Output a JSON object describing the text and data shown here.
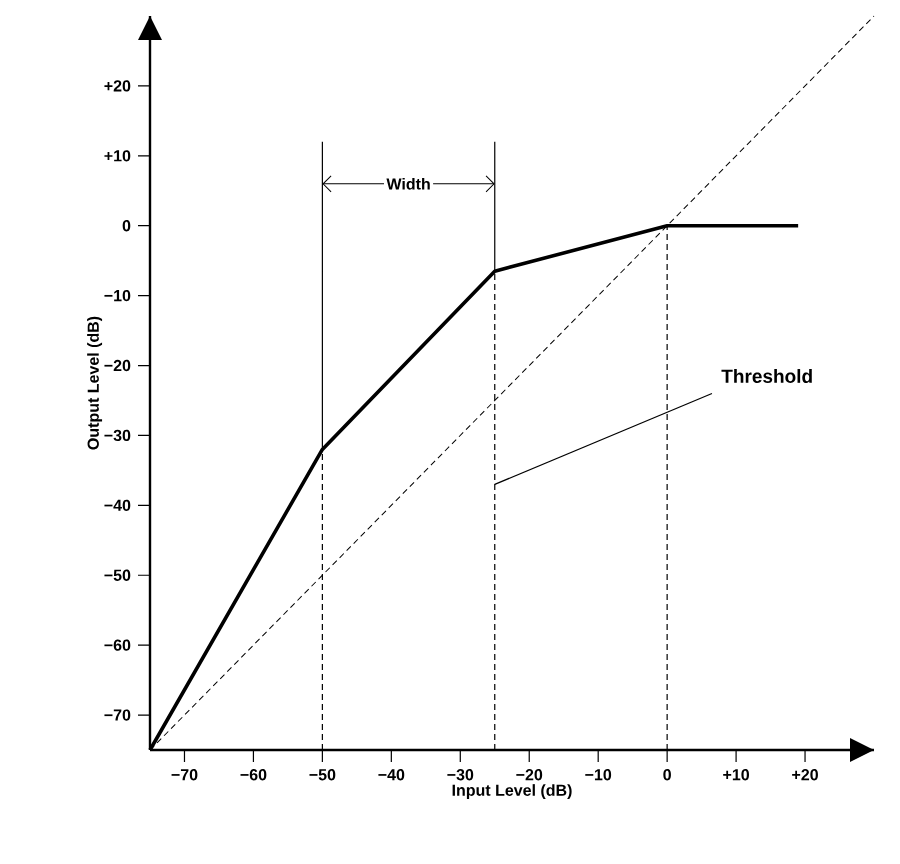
{
  "chart_data": {
    "type": "line",
    "xlabel": "Input Level (dB)",
    "ylabel": "Output Level (dB)",
    "xlim": [
      -75,
      30
    ],
    "ylim": [
      -75,
      30
    ],
    "xticks": [
      {
        "value": -70,
        "label": "−70"
      },
      {
        "value": -60,
        "label": "−60"
      },
      {
        "value": -50,
        "label": "−50"
      },
      {
        "value": -40,
        "label": "−40"
      },
      {
        "value": -30,
        "label": "−30"
      },
      {
        "value": -20,
        "label": "−20"
      },
      {
        "value": -10,
        "label": "−10"
      },
      {
        "value": 0,
        "label": "0"
      },
      {
        "value": 10,
        "label": "+10"
      },
      {
        "value": 20,
        "label": "+20"
      }
    ],
    "yticks": [
      {
        "value": -70,
        "label": "−70"
      },
      {
        "value": -60,
        "label": "−60"
      },
      {
        "value": -50,
        "label": "−50"
      },
      {
        "value": -40,
        "label": "−40"
      },
      {
        "value": -30,
        "label": "−30"
      },
      {
        "value": -20,
        "label": "−20"
      },
      {
        "value": -10,
        "label": "−10"
      },
      {
        "value": 0,
        "label": "0"
      },
      {
        "value": 10,
        "label": "+10"
      },
      {
        "value": 20,
        "label": "+20"
      }
    ],
    "series": [
      {
        "color": "#000000",
        "line_style": "solid",
        "x": [
          -75,
          -50,
          -25,
          0,
          19
        ],
        "values": [
          -75,
          -32,
          -6.5,
          0,
          0
        ]
      },
      {
        "color": "#000000",
        "line_style": "dashed",
        "x": [
          -75,
          30
        ],
        "values": [
          -75,
          30
        ]
      }
    ],
    "ref_lines": [
      {
        "axis": "x",
        "value": -50,
        "line_style": "dashed"
      },
      {
        "axis": "x",
        "value": -25,
        "line_style": "dashed"
      },
      {
        "axis": "x",
        "value": 0,
        "line_style": "dashed"
      }
    ],
    "annotations": [
      "Width",
      {
        "text": "Threshold",
        "x": -25,
        "y": -37
      }
    ],
    "grid": false,
    "marker": "none"
  }
}
